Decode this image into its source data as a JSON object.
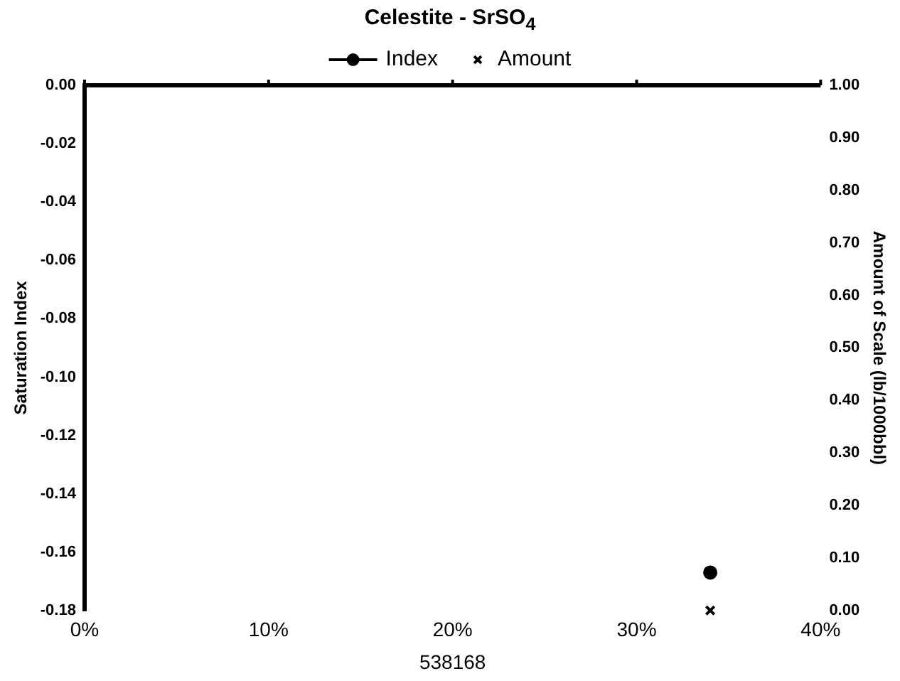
{
  "chart_data": {
    "type": "scatter",
    "title": "Celestite - SrSO$_{4}$",
    "xlabel": "538168",
    "ylabel": "Saturation Index",
    "y2label": "Amount of Scale (lb/1000bbl)",
    "legend": "top",
    "grid": false,
    "xlim": [
      0,
      40
    ],
    "xticks": [
      {
        "value": 0,
        "label": "0%"
      },
      {
        "value": 10,
        "label": "10%"
      },
      {
        "value": 20,
        "label": "20%"
      },
      {
        "value": 30,
        "label": "30%"
      },
      {
        "value": 40,
        "label": "40%"
      }
    ],
    "ylim": [
      -0.18,
      0
    ],
    "yticks": [
      {
        "value": -0.18,
        "label": "-0.18"
      },
      {
        "value": -0.16,
        "label": "-0.16"
      },
      {
        "value": -0.14,
        "label": "-0.14"
      },
      {
        "value": -0.12,
        "label": "-0.12"
      },
      {
        "value": -0.1,
        "label": "-0.10"
      },
      {
        "value": -0.08,
        "label": "-0.08"
      },
      {
        "value": -0.06,
        "label": "-0.06"
      },
      {
        "value": -0.04,
        "label": "-0.04"
      },
      {
        "value": -0.02,
        "label": "-0.02"
      },
      {
        "value": 0,
        "label": "0.00"
      }
    ],
    "y2lim": [
      0,
      1
    ],
    "y2ticks": [
      {
        "value": 0,
        "label": "0.00"
      },
      {
        "value": 0.1,
        "label": "0.10"
      },
      {
        "value": 0.2,
        "label": "0.20"
      },
      {
        "value": 0.3,
        "label": "0.30"
      },
      {
        "value": 0.4,
        "label": "0.40"
      },
      {
        "value": 0.5,
        "label": "0.50"
      },
      {
        "value": 0.6,
        "label": "0.60"
      },
      {
        "value": 0.7,
        "label": "0.70"
      },
      {
        "value": 0.8,
        "label": "0.80"
      },
      {
        "value": 0.9,
        "label": "0.90"
      },
      {
        "value": 1,
        "label": "1.00"
      }
    ],
    "series": [
      {
        "name": "Index",
        "color": "#000000",
        "x": [
          34
        ],
        "values": [
          -0.167
        ],
        "marker": "circle",
        "line_style": "solid"
      },
      {
        "name": "Amount",
        "color": "#000000",
        "x": [
          34
        ],
        "values": [
          0
        ],
        "marker": "cross",
        "axis": "y2"
      }
    ]
  }
}
